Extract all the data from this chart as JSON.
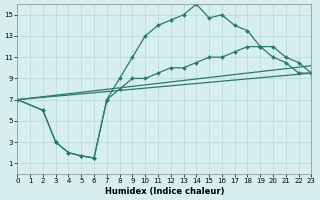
{
  "xlabel": "Humidex (Indice chaleur)",
  "xlim": [
    0,
    23
  ],
  "ylim": [
    0,
    16
  ],
  "xticks": [
    0,
    1,
    2,
    3,
    4,
    5,
    6,
    7,
    8,
    9,
    10,
    11,
    12,
    13,
    14,
    15,
    16,
    17,
    18,
    19,
    20,
    21,
    22,
    23
  ],
  "yticks": [
    1,
    3,
    5,
    7,
    9,
    11,
    13,
    15
  ],
  "background_color": "#d6eeee",
  "grid_color": "#b8d8d8",
  "line_color": "#2a7a6a",
  "series": [
    {
      "x": [
        0,
        2,
        3,
        4,
        5,
        6,
        7,
        8,
        9,
        10,
        11,
        12,
        13,
        14,
        15,
        16,
        17,
        18,
        19,
        20,
        21,
        22,
        23
      ],
      "y": [
        7.0,
        6.0,
        3.0,
        2.0,
        1.7,
        1.5,
        7.0,
        9.0,
        11.0,
        13.0,
        14.0,
        14.5,
        15.0,
        16.0,
        14.7,
        15.0,
        14.0,
        13.5,
        12.0,
        12.0,
        11.0,
        10.5,
        9.5
      ],
      "marker": true
    },
    {
      "x": [
        0,
        2,
        3,
        4,
        5,
        6,
        7,
        8,
        9,
        10,
        11,
        12,
        13,
        14,
        15,
        16,
        17,
        18,
        19,
        20,
        21,
        22,
        23
      ],
      "y": [
        7.0,
        6.0,
        3.0,
        2.0,
        1.7,
        1.5,
        7.0,
        8.0,
        9.0,
        9.0,
        9.5,
        10.0,
        10.0,
        10.5,
        11.0,
        11.0,
        11.5,
        12.0,
        12.0,
        11.0,
        10.5,
        9.5,
        9.5
      ],
      "marker": true
    },
    {
      "x": [
        0,
        23
      ],
      "y": [
        7.0,
        9.5
      ],
      "marker": false
    },
    {
      "x": [
        0,
        23
      ],
      "y": [
        7.0,
        10.2
      ],
      "marker": false
    }
  ]
}
